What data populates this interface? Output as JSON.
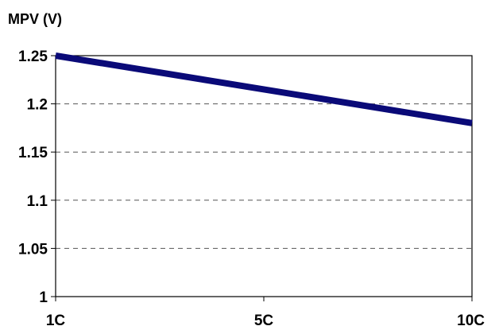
{
  "chart_data": {
    "type": "line",
    "title": "",
    "ylabel": "MPV (V)",
    "xlabel": "",
    "categories": [
      "1C",
      "5C",
      "10C"
    ],
    "x": [
      1,
      10
    ],
    "series": [
      {
        "values": [
          1.25,
          1.18
        ],
        "color": "#0a0a78"
      }
    ],
    "ylim": [
      1,
      1.25
    ],
    "yticks": [
      1,
      1.05,
      1.1,
      1.15,
      1.2,
      1.25
    ],
    "ytick_labels": [
      "1",
      "1.05",
      "1.1",
      "1.15",
      "1.2",
      "1.25"
    ],
    "grid": true,
    "grid_style": "dashed"
  }
}
